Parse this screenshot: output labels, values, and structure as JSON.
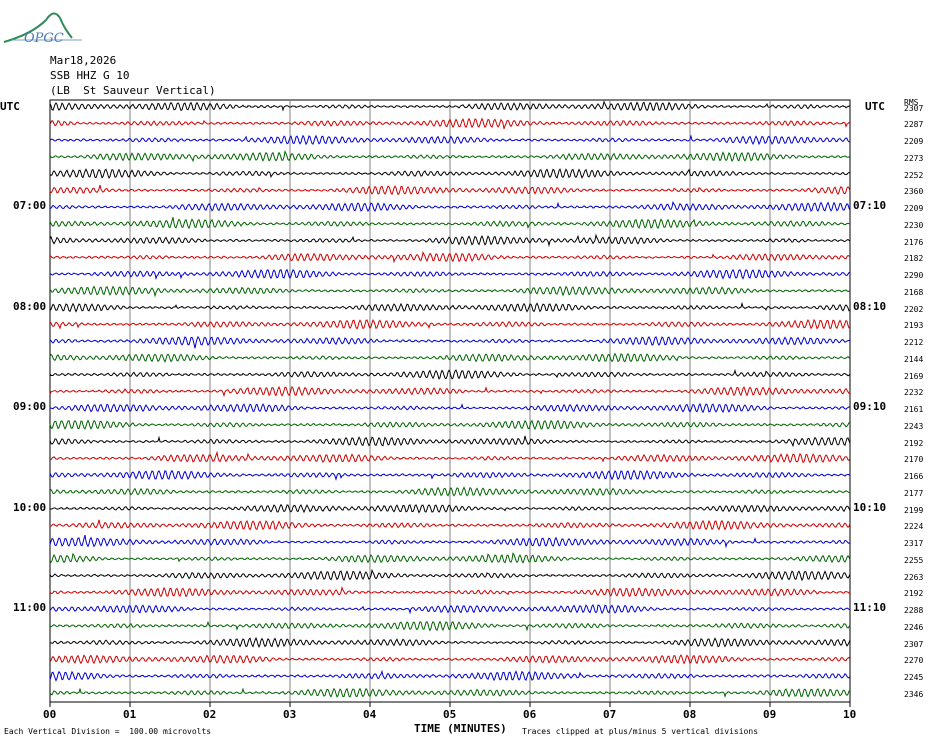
{
  "logo": {
    "text": "OPGC",
    "icon": "ofgc-logo-icon"
  },
  "header": {
    "date": "Mar18,2026",
    "station": "SSB HHZ G 10",
    "location": "(LB  St Sauveur Vertical)"
  },
  "left_axis_label": "UTC",
  "right_axis_label": "UTC",
  "rms_header": "RMS",
  "colors": {
    "cycle": [
      "#000000",
      "#d00000",
      "#0000d0",
      "#006400"
    ],
    "grid": "#808080"
  },
  "chart_data": {
    "type": "line",
    "title": "",
    "xlabel": "TIME (MINUTES)",
    "ylabel": "",
    "xlim": [
      0,
      10
    ],
    "x_ticks": [
      "00",
      "01",
      "02",
      "03",
      "04",
      "05",
      "06",
      "07",
      "08",
      "09",
      "10"
    ],
    "grid": true,
    "trace_count": 36,
    "minutes_per_trace": 10,
    "hour_labels_left": [
      {
        "trace": 6,
        "label": "07:00"
      },
      {
        "trace": 12,
        "label": "08:00"
      },
      {
        "trace": 18,
        "label": "09:00"
      },
      {
        "trace": 24,
        "label": "10:00"
      },
      {
        "trace": 30,
        "label": "11:00"
      }
    ],
    "hour_labels_right": [
      {
        "trace": 6,
        "label": "07:10"
      },
      {
        "trace": 12,
        "label": "08:10"
      },
      {
        "trace": 18,
        "label": "09:10"
      },
      {
        "trace": 24,
        "label": "10:10"
      },
      {
        "trace": 30,
        "label": "11:10"
      }
    ],
    "rms_values": [
      2307,
      2287,
      2209,
      2273,
      2252,
      2360,
      2209,
      2230,
      2176,
      2182,
      2290,
      2168,
      2202,
      2193,
      2212,
      2144,
      2169,
      2232,
      2161,
      2243,
      2192,
      2170,
      2166,
      2177,
      2199,
      2224,
      2317,
      2255,
      2263,
      2192,
      2288,
      2246,
      2307,
      2270,
      2245,
      2346
    ],
    "footer_scale": "Each Vertical Division =  100.00 microvolts",
    "footer_clip": "Traces clipped at plus/minus 5 vertical divisions"
  }
}
